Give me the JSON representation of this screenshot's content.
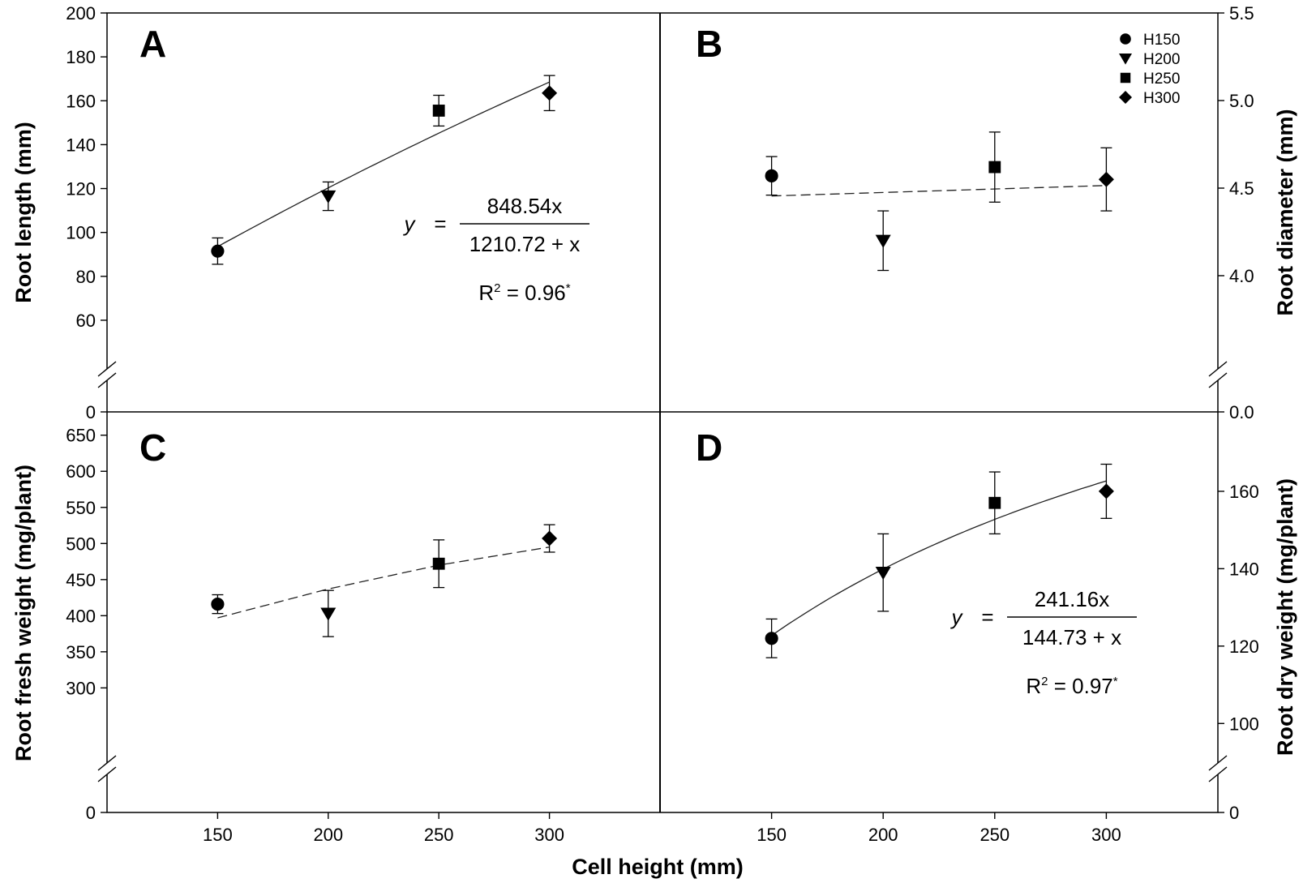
{
  "figure": {
    "xlabel": "Cell height (mm)",
    "legend": {
      "placement": "top-right",
      "entries": [
        {
          "label": "H150",
          "marker": "circle"
        },
        {
          "label": "H200",
          "marker": "triangle-down"
        },
        {
          "label": "H250",
          "marker": "square"
        },
        {
          "label": "H300",
          "marker": "diamond"
        }
      ]
    }
  },
  "chart_data": [
    {
      "panel": "A",
      "type": "scatter",
      "ylabel": "Root length (mm)",
      "y_axis_side": "left",
      "x": [
        150,
        200,
        250,
        300
      ],
      "xticks": [
        "150",
        "200",
        "250",
        "300"
      ],
      "xlim": [
        100,
        350
      ],
      "ylim": [
        50,
        200
      ],
      "yticks": [
        60,
        80,
        100,
        120,
        140,
        160,
        180,
        200
      ],
      "ytick_labels": [
        "60",
        "80",
        "100",
        "120",
        "140",
        "160",
        "180",
        "200"
      ],
      "y_zero_label": "0",
      "axis_break": true,
      "series": [
        {
          "name": "H150",
          "x": 150,
          "y": 91.5,
          "err": 6
        },
        {
          "name": "H200",
          "x": 200,
          "y": 116.5,
          "err": 6.5
        },
        {
          "name": "H250",
          "x": 250,
          "y": 155.5,
          "err": 7
        },
        {
          "name": "H300",
          "x": 300,
          "y": 163.5,
          "err": 8
        }
      ],
      "fit": {
        "a": 848.54,
        "b": 1210.72,
        "x_range": [
          150,
          300
        ],
        "style": "solid"
      },
      "equation": {
        "y": "y",
        "eq": "=",
        "numerator": "848.54x",
        "denominator": "1210.72 + x",
        "r2_prefix": "R",
        "r2_exp": "2",
        "r2_value": " = 0.96",
        "r2_sig": "*"
      }
    },
    {
      "panel": "B",
      "type": "scatter",
      "ylabel": "Root diameter (mm)",
      "y_axis_side": "right",
      "x": [
        150,
        200,
        250,
        300
      ],
      "xticks": [
        "150",
        "200",
        "250",
        "300"
      ],
      "xlim": [
        100,
        350
      ],
      "ylim": [
        3.75,
        5.5
      ],
      "yticks": [
        4.0,
        4.5,
        5.0,
        5.5
      ],
      "ytick_labels": [
        "4.0",
        "4.5",
        "5.0",
        "5.5"
      ],
      "y_zero_label": "0.0",
      "axis_break": true,
      "series": [
        {
          "name": "H150",
          "x": 150,
          "y": 4.57,
          "err": 0.11
        },
        {
          "name": "H200",
          "x": 200,
          "y": 4.2,
          "err": 0.17
        },
        {
          "name": "H250",
          "x": 250,
          "y": 4.62,
          "err": 0.2
        },
        {
          "name": "H300",
          "x": 300,
          "y": 4.55,
          "err": 0.18
        }
      ],
      "fit": {
        "linear": [
          4.455,
          4.515
        ],
        "x_range": [
          150,
          300
        ],
        "style": "dashed"
      }
    },
    {
      "panel": "C",
      "type": "scatter",
      "ylabel": "Root fresh weight (mg/plant)",
      "y_axis_side": "left",
      "x": [
        150,
        200,
        250,
        300
      ],
      "xticks": [
        "150",
        "200",
        "250",
        "300"
      ],
      "xlim": [
        100,
        350
      ],
      "ylim": [
        260,
        680
      ],
      "yticks": [
        300,
        350,
        400,
        450,
        500,
        550,
        600,
        650
      ],
      "ytick_labels": [
        "300",
        "350",
        "400",
        "450",
        "500",
        "550",
        "600",
        "650"
      ],
      "y_zero_label": "0",
      "axis_break": true,
      "series": [
        {
          "name": "H150",
          "x": 150,
          "y": 416,
          "err": 13
        },
        {
          "name": "H200",
          "x": 200,
          "y": 403,
          "err": 32
        },
        {
          "name": "H250",
          "x": 250,
          "y": 472,
          "err": 33
        },
        {
          "name": "H300",
          "x": 300,
          "y": 507,
          "err": 19
        }
      ],
      "fit": {
        "points": [
          [
            150,
            397
          ],
          [
            200,
            437
          ],
          [
            250,
            470
          ],
          [
            300,
            495
          ]
        ],
        "x_range": [
          150,
          300
        ],
        "style": "dashed"
      }
    },
    {
      "panel": "D",
      "type": "scatter",
      "ylabel": "Root dry weight (mg/plant)",
      "y_axis_side": "right",
      "x": [
        150,
        200,
        250,
        300
      ],
      "xticks": [
        "150",
        "200",
        "250",
        "300"
      ],
      "xlim": [
        100,
        350
      ],
      "ylim": [
        90,
        178
      ],
      "yticks": [
        100,
        120,
        140,
        160
      ],
      "ytick_labels": [
        "100",
        "120",
        "140",
        "160"
      ],
      "y_zero_label": "0",
      "axis_break": true,
      "series": [
        {
          "name": "H150",
          "x": 150,
          "y": 122,
          "err": 5
        },
        {
          "name": "H200",
          "x": 200,
          "y": 139,
          "err": 10
        },
        {
          "name": "H250",
          "x": 250,
          "y": 157,
          "err": 8
        },
        {
          "name": "H300",
          "x": 300,
          "y": 160,
          "err": 7
        }
      ],
      "fit": {
        "a": 241.16,
        "b": 144.73,
        "x_range": [
          150,
          300
        ],
        "style": "solid"
      },
      "equation": {
        "y": "y",
        "eq": "=",
        "numerator": "241.16x",
        "denominator": "144.73 + x",
        "r2_prefix": "R",
        "r2_exp": "2",
        "r2_value": " = 0.97",
        "r2_sig": "*"
      }
    }
  ]
}
